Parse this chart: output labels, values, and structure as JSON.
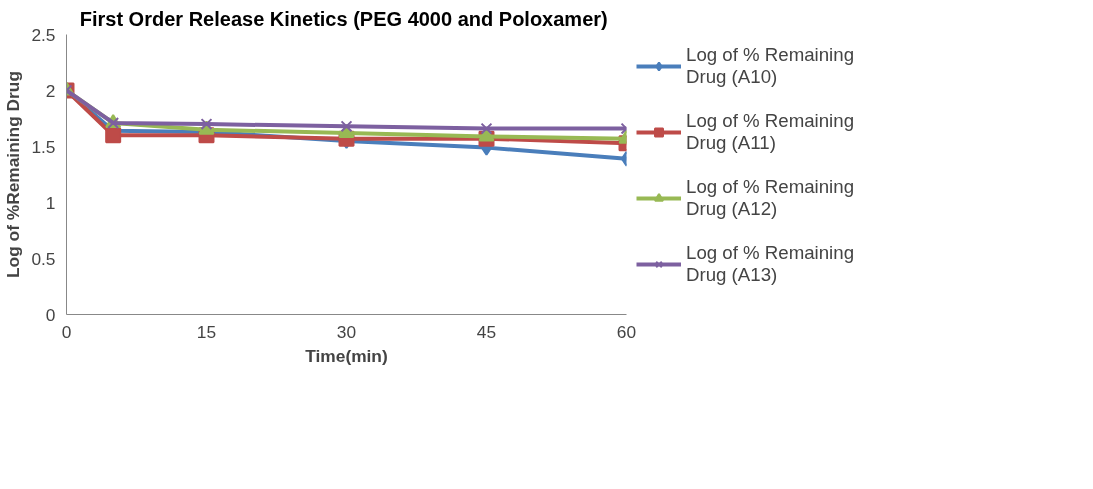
{
  "chart_data": {
    "type": "line",
    "title": "First Order  Release Kinetics (PEG 4000 and Poloxamer)",
    "xlabel": "Time(min)",
    "ylabel": "Log of %Remaining Drug",
    "x": [
      0,
      5,
      15,
      30,
      45,
      60
    ],
    "xlim": [
      0,
      60
    ],
    "xticks": [
      0,
      15,
      30,
      45,
      60
    ],
    "ylim": [
      0,
      2.5
    ],
    "yticks": [
      0,
      0.5,
      1,
      1.5,
      2,
      2.5
    ],
    "grid": false,
    "legend": "right",
    "line_style": "solid",
    "series": [
      {
        "name": "Log of % Remaining Drug (A10)",
        "color": "#4a7ebb",
        "marker": "diamond",
        "values": [
          2,
          1.64,
          1.63,
          1.55,
          1.49,
          1.39
        ]
      },
      {
        "name": "Log of % Remaining Drug (A11)",
        "color": "#be4b48",
        "marker": "square",
        "values": [
          2,
          1.6,
          1.6,
          1.57,
          1.57,
          1.53
        ]
      },
      {
        "name": "Log of % Remaining Drug (A12)",
        "color": "#98b954",
        "marker": "triangle",
        "values": [
          2,
          1.71,
          1.65,
          1.62,
          1.59,
          1.57
        ]
      },
      {
        "name": "Log of % Remaining Drug (A13)",
        "color": "#7d60a0",
        "marker": "cross",
        "values": [
          2,
          1.71,
          1.7,
          1.68,
          1.66,
          1.66
        ]
      }
    ]
  }
}
